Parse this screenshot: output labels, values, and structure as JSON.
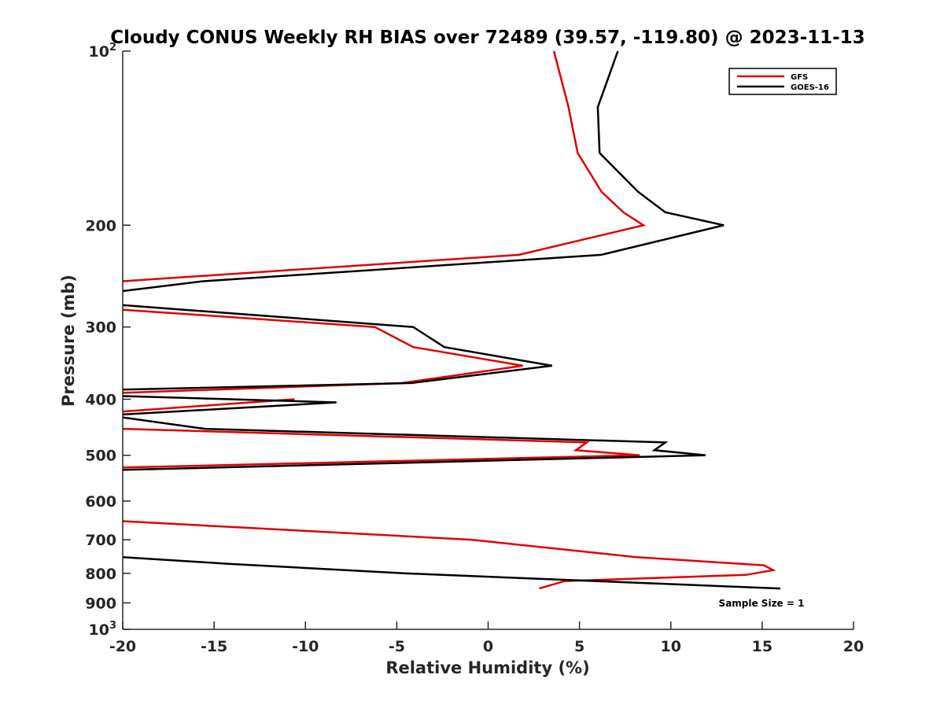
{
  "chart_data": {
    "type": "line",
    "title": "Cloudy CONUS Weekly RH BIAS over 72489 (39.57, -119.80) @ 2023-11-13",
    "xlabel": "Relative Humidity (%)",
    "ylabel": "Pressure (mb)",
    "xlim": [
      -20,
      20
    ],
    "ylim": [
      100,
      1000
    ],
    "y_scale": "log",
    "y_reversed": true,
    "grid": false,
    "legend_position": "top-right",
    "note": "Sample Size = 1",
    "x_ticks": [
      "-20",
      "-15",
      "-10",
      "-5",
      "0",
      "5",
      "10",
      "15",
      "20"
    ],
    "x_tick_values": [
      -20,
      -15,
      -10,
      -5,
      0,
      5,
      10,
      15,
      20
    ],
    "y_ticks": [
      {
        "value": 100,
        "base": "10",
        "exp": "2"
      },
      {
        "value": 200,
        "label": "200"
      },
      {
        "value": 300,
        "label": "300"
      },
      {
        "value": 400,
        "label": "400"
      },
      {
        "value": 500,
        "label": "500"
      },
      {
        "value": 600,
        "label": "600"
      },
      {
        "value": 700,
        "label": "700"
      },
      {
        "value": 800,
        "label": "800"
      },
      {
        "value": 900,
        "label": "900"
      },
      {
        "value": 1000,
        "base": "10",
        "exp": "3"
      }
    ],
    "series": [
      {
        "name": "GFS",
        "color": "#e00000",
        "segments": [
          [
            [
              3.6,
              100
            ],
            [
              4.4,
              125
            ],
            [
              4.9,
              150
            ],
            [
              6.2,
              175
            ],
            [
              7.4,
              190
            ],
            [
              8.5,
              200
            ],
            [
              1.7,
              225
            ],
            [
              -20,
              250
            ]
          ],
          [
            [
              -20,
              280
            ],
            [
              -6.2,
              300
            ],
            [
              -4.1,
              325
            ],
            [
              1.9,
              350
            ],
            [
              -4.7,
              375
            ],
            [
              -20,
              390
            ]
          ],
          [
            [
              -10.6,
              400
            ],
            [
              -20,
              420
            ]
          ],
          [
            [
              -20,
              450
            ],
            [
              5.4,
              475
            ],
            [
              4.8,
              490
            ],
            [
              8.3,
              500
            ],
            [
              -20,
              525
            ]
          ],
          [
            [
              -20,
              650
            ],
            [
              -0.9,
              700
            ],
            [
              8.1,
              750
            ],
            [
              15.1,
              775
            ],
            [
              15.6,
              790
            ],
            [
              14.1,
              805
            ],
            [
              4.2,
              825
            ],
            [
              2.8,
              850
            ]
          ]
        ]
      },
      {
        "name": "GOES-16",
        "color": "#000000",
        "segments": [
          [
            [
              7.1,
              100
            ],
            [
              6.0,
              125
            ],
            [
              6.1,
              150
            ],
            [
              8.2,
              175
            ],
            [
              9.7,
              190
            ],
            [
              12.9,
              200
            ],
            [
              6.2,
              225
            ],
            [
              -15.6,
              250
            ],
            [
              -20,
              260
            ]
          ],
          [
            [
              -20,
              275
            ],
            [
              -4.1,
              300
            ],
            [
              -2.4,
              325
            ],
            [
              3.5,
              350
            ],
            [
              -4.2,
              375
            ],
            [
              -20,
              385
            ]
          ],
          [
            [
              -20,
              395
            ],
            [
              -8.3,
              405
            ],
            [
              -20,
              425
            ]
          ],
          [
            [
              -20,
              430
            ],
            [
              -15.5,
              450
            ],
            [
              9.7,
              475
            ],
            [
              9.1,
              490
            ],
            [
              11.9,
              500
            ],
            [
              -20,
              530
            ]
          ],
          [
            [
              -20,
              750
            ],
            [
              -14.3,
              770
            ],
            [
              -4.6,
              800
            ],
            [
              16.0,
              850
            ]
          ]
        ]
      }
    ]
  }
}
